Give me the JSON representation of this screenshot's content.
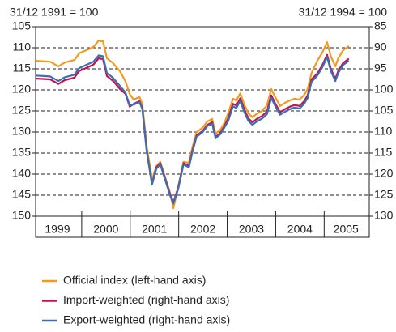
{
  "chart_data": {
    "type": "line",
    "left_axis_note": "31/12 1991 = 100",
    "right_axis_note": "31/12 1994 = 100",
    "x": [
      1999.05,
      1999.35,
      1999.52,
      1999.65,
      1999.85,
      1999.95,
      2000.09,
      2000.24,
      2000.35,
      2000.44,
      2000.52,
      2000.65,
      2000.79,
      2000.9,
      2000.99,
      2001.07,
      2001.19,
      2001.25,
      2001.34,
      2001.45,
      2001.54,
      2001.62,
      2001.7,
      2001.82,
      2001.89,
      2001.99,
      2002.1,
      2002.21,
      2002.29,
      2002.37,
      2002.49,
      2002.59,
      2002.69,
      2002.76,
      2002.86,
      2002.94,
      2003.02,
      2003.12,
      2003.19,
      2003.27,
      2003.36,
      2003.44,
      2003.52,
      2003.62,
      2003.72,
      2003.82,
      2003.91,
      2003.99,
      2004.09,
      2004.19,
      2004.29,
      2004.39,
      2004.49,
      2004.58,
      2004.66,
      2004.74,
      2004.86,
      2004.96,
      2005.06,
      2005.14,
      2005.23,
      2005.29,
      2005.39,
      2005.51
    ],
    "xlim": [
      1999.05,
      2005.93
    ],
    "xticks": [
      {
        "value": 1999.5,
        "label": "1999"
      },
      {
        "value": 2000.5,
        "label": "2000"
      },
      {
        "value": 2001.5,
        "label": "2001"
      },
      {
        "value": 2002.5,
        "label": "2002"
      },
      {
        "value": 2003.5,
        "label": "2003"
      },
      {
        "value": 2004.5,
        "label": "2004"
      },
      {
        "value": 2005.45,
        "label": "2005"
      }
    ],
    "x_dividers": [
      2000,
      2001,
      2002,
      2003,
      2004,
      2005
    ],
    "ylim": [
      105,
      150
    ],
    "yticks": [
      105,
      110,
      115,
      120,
      125,
      130,
      135,
      140,
      145,
      150
    ],
    "y2lim": [
      85,
      130
    ],
    "y2ticks": [
      85,
      90,
      95,
      100,
      105,
      110,
      115,
      120,
      125,
      130
    ],
    "y_inverted": true,
    "grid": true,
    "series": [
      {
        "name": "Official index (left-hand axis)",
        "color": "#f39a1e",
        "values": [
          113.1,
          113.3,
          114.4,
          113.5,
          112.9,
          111.3,
          110.6,
          109.8,
          108.3,
          108.5,
          112.5,
          113.7,
          115.6,
          117.9,
          121.0,
          122.3,
          121.7,
          123.3,
          133.3,
          141.3,
          138.1,
          137.1,
          140.0,
          144.4,
          148.1,
          142.9,
          137.1,
          137.3,
          133.3,
          130.0,
          129.0,
          127.5,
          126.9,
          130.4,
          129.4,
          127.9,
          125.6,
          122.1,
          122.5,
          120.8,
          123.7,
          125.6,
          126.5,
          125.6,
          125.0,
          123.7,
          119.8,
          121.7,
          123.8,
          123.1,
          122.5,
          122.1,
          122.3,
          121.3,
          119.8,
          116.0,
          113.1,
          111.2,
          108.7,
          112.1,
          114.4,
          112.5,
          110.6,
          109.6
        ]
      },
      {
        "name": "Import-weighted (right-hand axis)",
        "color": "#c0144c",
        "axis": "y2",
        "values": [
          97.3,
          97.5,
          98.6,
          97.7,
          97.1,
          95.5,
          94.8,
          94.0,
          92.5,
          92.7,
          96.7,
          97.9,
          99.8,
          100.9,
          104.0,
          103.3,
          102.7,
          104.3,
          114.3,
          122.3,
          118.4,
          117.4,
          120.3,
          124.7,
          126.7,
          123.2,
          117.4,
          118.1,
          114.1,
          110.8,
          109.8,
          108.3,
          107.7,
          111.2,
          110.2,
          108.7,
          106.8,
          103.3,
          103.7,
          102.0,
          104.9,
          106.8,
          107.7,
          106.8,
          106.2,
          105.2,
          101.3,
          103.2,
          105.3,
          104.6,
          104.0,
          103.6,
          103.8,
          102.8,
          101.3,
          97.5,
          96.1,
          94.2,
          91.7,
          95.1,
          97.4,
          95.5,
          93.6,
          92.6
        ]
      },
      {
        "name": "Export-weighted (right-hand axis)",
        "color": "#3a6fb5",
        "axis": "y2",
        "values": [
          96.6,
          96.8,
          97.9,
          97.0,
          96.4,
          94.8,
          94.1,
          93.3,
          91.8,
          92.0,
          96.0,
          97.2,
          99.1,
          100.6,
          103.7,
          103.5,
          102.9,
          104.5,
          114.5,
          122.5,
          118.7,
          117.7,
          120.6,
          125.0,
          127.0,
          123.5,
          117.7,
          118.4,
          114.4,
          111.1,
          110.1,
          108.6,
          108.0,
          111.5,
          110.5,
          109.0,
          107.4,
          103.9,
          104.3,
          102.6,
          105.5,
          107.4,
          108.3,
          107.4,
          106.8,
          105.8,
          101.9,
          103.8,
          105.9,
          105.2,
          104.6,
          104.2,
          104.4,
          103.4,
          101.9,
          98.1,
          96.6,
          94.7,
          92.2,
          95.6,
          97.9,
          96.0,
          94.1,
          93.1
        ]
      }
    ]
  }
}
